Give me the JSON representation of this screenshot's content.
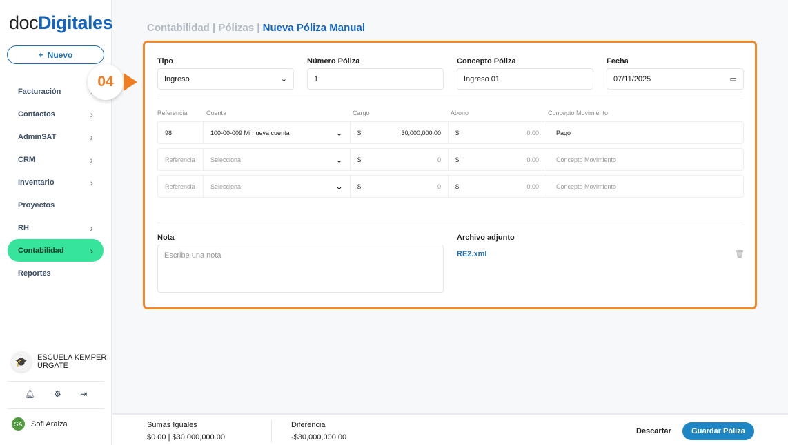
{
  "brand": {
    "part1": "doc",
    "part2": "Digitales"
  },
  "sidebar": {
    "new_label": "Nuevo",
    "items": [
      {
        "label": "Facturación",
        "chevron": true
      },
      {
        "label": "Contactos",
        "chevron": true
      },
      {
        "label": "AdminSAT",
        "chevron": true
      },
      {
        "label": "CRM",
        "chevron": true
      },
      {
        "label": "Inventario",
        "chevron": true
      },
      {
        "label": "Proyectos",
        "chevron": false
      },
      {
        "label": "RH",
        "chevron": true
      },
      {
        "label": "Contabilidad",
        "chevron": true,
        "active": true
      },
      {
        "label": "Reportes",
        "chevron": false
      }
    ],
    "org_name_line1": "ESCUELA KEMPER",
    "org_name_line2": "URGATE",
    "user_initials": "SA",
    "user_name": "Sofi Araiza"
  },
  "marker": {
    "step": "04",
    "color": "#ef7d22"
  },
  "breadcrumb": {
    "part1": "Contabilidad",
    "sep": "|",
    "part2": "Pólizas",
    "current": "Nueva Póliza Manual"
  },
  "form": {
    "tipo": {
      "label": "Tipo",
      "value": "Ingreso"
    },
    "numero": {
      "label": "Número Póliza",
      "value": "1"
    },
    "concepto": {
      "label": "Concepto Póliza",
      "value": "Ingreso 01"
    },
    "fecha": {
      "label": "Fecha",
      "value": "07/11/2025"
    }
  },
  "movements": {
    "headers": [
      "Referencia",
      "Cuenta",
      "Cargo",
      "Abono",
      "Concepto Movimiento"
    ],
    "rows": [
      {
        "ref": "98",
        "cuenta": "100-00-009 Mi nueva cuenta",
        "cargo": "30,000,000.00",
        "abono": "0.00",
        "concepto": "Pago",
        "filled": true
      },
      {
        "ref": "Referencia",
        "cuenta": "Selecciona",
        "cargo": "0",
        "abono": "0.00",
        "concepto": "Concepto Movimiento",
        "filled": false
      },
      {
        "ref": "Referencia",
        "cuenta": "Selecciona",
        "cargo": "0",
        "abono": "0.00",
        "concepto": "Concepto Movimiento",
        "filled": false
      }
    ],
    "currency": "$"
  },
  "nota": {
    "label": "Nota",
    "placeholder": "Escribe una nota"
  },
  "archivo": {
    "label": "Archivo adjunto",
    "file": "RE2.xml"
  },
  "footer": {
    "sumas_label": "Sumas Iguales",
    "sumas_value": "$0.00 | $30,000,000.00",
    "dif_label": "Diferencia",
    "dif_value": "-$30,000,000.00",
    "discard": "Descartar",
    "save": "Guardar Póliza"
  }
}
